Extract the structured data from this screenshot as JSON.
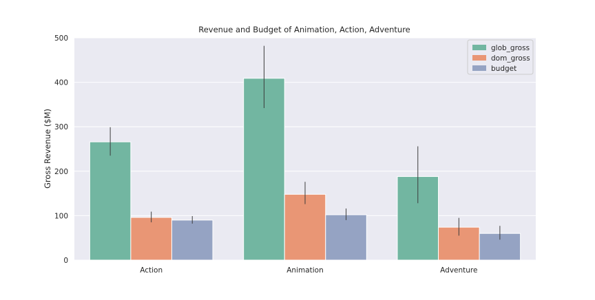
{
  "chart_data": {
    "type": "bar",
    "title": "Revenue and Budget of Animation, Action, Adventure",
    "xlabel": "",
    "ylabel": "Gross Revenue ($M)",
    "ylim": [
      0,
      500
    ],
    "yticks": [
      "0",
      "100",
      "200",
      "300",
      "400",
      "500"
    ],
    "grid": true,
    "legend_position": "top-right",
    "categories": [
      "Action",
      "Animation",
      "Adventure"
    ],
    "series": [
      {
        "name": "glob_gross",
        "color": "#72b6a1",
        "values": [
          266,
          409,
          188
        ],
        "err_low": [
          235,
          342,
          128
        ],
        "err_high": [
          299,
          482,
          256
        ]
      },
      {
        "name": "dom_gross",
        "color": "#e99675",
        "values": [
          96,
          148,
          74
        ],
        "err_low": [
          85,
          126,
          55
        ],
        "err_high": [
          109,
          176,
          95
        ]
      },
      {
        "name": "budget",
        "color": "#95a3c3",
        "values": [
          90,
          102,
          60
        ],
        "err_low": [
          82,
          90,
          46
        ],
        "err_high": [
          99,
          116,
          77
        ]
      }
    ],
    "background_color": "#eaeaf2"
  }
}
